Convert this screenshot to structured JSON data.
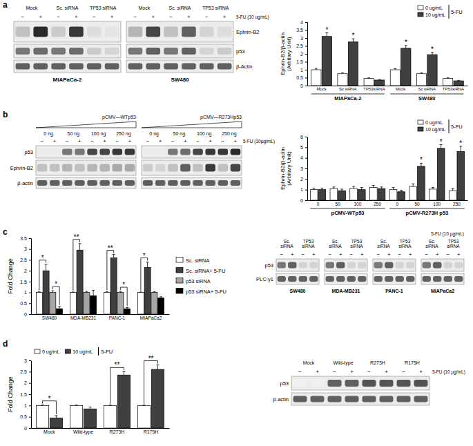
{
  "panel_labels": [
    "a",
    "b",
    "c",
    "d"
  ],
  "chart_data": [
    {
      "type": "bar",
      "y_label": [
        "Ephrin-B2/β-actin",
        "(Arbitary Unit)"
      ],
      "categories": [
        "Mock",
        "Sc siRNA",
        "TP53siRNA",
        "Mock",
        "Sc siRNA",
        "TP53siRNA"
      ],
      "groups": [
        {
          "name": "MIAPaCa-2",
          "size": 3
        },
        {
          "name": "SW480",
          "size": 3
        }
      ],
      "series": [
        {
          "name": "0 ug/mL",
          "color": "#ffffff",
          "values": [
            1.0,
            0.75,
            0.45,
            1.0,
            0.75,
            0.45
          ],
          "errors": [
            0.08,
            0.05,
            0.04,
            0.07,
            0.05,
            0.04
          ]
        },
        {
          "name": "10 ug/mL",
          "color": "#404040",
          "values": [
            3.1,
            2.75,
            0.35,
            2.35,
            1.95,
            0.3
          ],
          "errors": [
            0.22,
            0.2,
            0.03,
            0.18,
            0.15,
            0.03
          ]
        }
      ],
      "legend_title": "5-FU",
      "legend": "top right",
      "ylim": [
        0,
        4
      ],
      "yticks": [
        0,
        0.5,
        1,
        1.5,
        2,
        2.5,
        3,
        3.5,
        4
      ],
      "annotations": [
        {
          "text": "*",
          "series": 1,
          "category": 0
        },
        {
          "text": "*",
          "series": 1,
          "category": 1
        },
        {
          "text": "*",
          "series": 1,
          "category": 3
        },
        {
          "text": "*",
          "series": 1,
          "category": 4
        }
      ]
    },
    {
      "type": "bar",
      "y_label": [
        "Ephrin-B2/β-actin",
        "(Arbitary Unit)"
      ],
      "categories": [
        "0",
        "50",
        "100",
        "250",
        "0",
        "50",
        "100",
        "250"
      ],
      "groups": [
        {
          "name": "pCMV-WTp53",
          "size": 4
        },
        {
          "name": "pCMV-R273H p53",
          "size": 4
        }
      ],
      "series": [
        {
          "name": "0 ug/mL",
          "color": "#ffffff",
          "values": [
            1.0,
            1.1,
            1.1,
            1.2,
            1.0,
            1.3,
            1.05,
            0.9
          ],
          "errors": [
            0.15,
            0.15,
            0.2,
            0.2,
            0.2,
            0.25,
            0.15,
            0.2
          ]
        },
        {
          "name": "10 ug/mL",
          "color": "#404040",
          "values": [
            1.0,
            0.9,
            1.0,
            1.1,
            0.8,
            3.2,
            4.9,
            4.6
          ],
          "errors": [
            0.15,
            0.15,
            0.2,
            0.15,
            0.15,
            0.3,
            0.35,
            0.5
          ]
        }
      ],
      "legend_title": "5-FU",
      "legend": "top right",
      "ylim": [
        0,
        6
      ],
      "yticks": [
        0,
        1,
        2,
        3,
        4,
        5,
        6
      ],
      "annotations": [
        {
          "text": "*",
          "series": 1,
          "category": 5
        },
        {
          "text": "*",
          "series": 1,
          "category": 6
        },
        {
          "text": "*",
          "series": 1,
          "category": 7
        }
      ]
    },
    {
      "type": "bar",
      "y_label": "Fold Change",
      "categories": [
        "SW480",
        "MDA-MB231",
        "PANC-1",
        "MIAPaCa2"
      ],
      "series": [
        {
          "name": "Sc. siRNA",
          "color": "#ffffff",
          "values": [
            1,
            1,
            1,
            1
          ],
          "errors": [
            0.03,
            0.02,
            0.03,
            0.02
          ]
        },
        {
          "name": "Sc. siRNA+ 5-FU",
          "color": "#404040",
          "values": [
            2.0,
            2.95,
            2.6,
            2.15
          ],
          "errors": [
            0.3,
            0.3,
            0.15,
            0.25
          ]
        },
        {
          "name": "p53 siRNA",
          "color": "#a6a6a6",
          "values": [
            1,
            1,
            1,
            1
          ],
          "errors": [
            0.08,
            0.05,
            0.05,
            0.03
          ]
        },
        {
          "name": "p53 siRNA+ 5-FU",
          "color": "#000000",
          "values": [
            0.25,
            0.85,
            0.25,
            0.75
          ],
          "errors": [
            0.1,
            0.25,
            0.05,
            0.05
          ]
        }
      ],
      "legend": "right",
      "ylim": [
        0,
        3.5
      ],
      "yticks": [
        0,
        0.5,
        1,
        1.5,
        2,
        2.5,
        3,
        3.5
      ],
      "brackets": [
        {
          "text": "*",
          "category": 0,
          "from": 0,
          "to": 1
        },
        {
          "text": "*",
          "category": 0,
          "from": 2,
          "to": 3
        },
        {
          "text": "**",
          "category": 1,
          "from": 0,
          "to": 1
        },
        {
          "text": "**",
          "category": 2,
          "from": 0,
          "to": 1
        },
        {
          "text": "*",
          "category": 2,
          "from": 2,
          "to": 3
        },
        {
          "text": "*",
          "category": 3,
          "from": 0,
          "to": 1
        }
      ]
    },
    {
      "type": "bar",
      "y_label": "Fold Change",
      "categories": [
        "Mock",
        "Wild-type",
        "R273H",
        "R175H"
      ],
      "series": [
        {
          "name": "0 ug/mL",
          "color": "#ffffff",
          "values": [
            1,
            1,
            1,
            1
          ],
          "errors": [
            0.02,
            0.02,
            0.02,
            0.02
          ]
        },
        {
          "name": "10 ug/mL",
          "color": "#404040",
          "values": [
            0.45,
            0.85,
            2.35,
            2.6
          ],
          "errors": [
            0.1,
            0.08,
            0.15,
            0.2
          ]
        }
      ],
      "legend_title": "5-FU",
      "legend": "top left",
      "ylim": [
        0,
        3
      ],
      "yticks": [
        0,
        0.5,
        1,
        1.5,
        2,
        2.5,
        3
      ],
      "brackets": [
        {
          "text": "*",
          "category": 0,
          "from": 0,
          "to": 1
        },
        {
          "text": "**",
          "category": 2,
          "from": 0,
          "to": 1
        },
        {
          "text": "**",
          "category": 3,
          "from": 0,
          "to": 1
        }
      ]
    }
  ],
  "blots": [
    {
      "treatment_label": "5-FU (10 ug/mL)",
      "row_names": [
        "Ephrin-B2",
        "p53",
        "β-Actin"
      ],
      "panels": [
        {
          "caption": "MIAPaCa-2",
          "lane_groups": [
            "Mock",
            "Sc. siRNA",
            "TP53 siRNA"
          ],
          "lane_labels": [
            "−",
            "+",
            "−",
            "+",
            "−",
            "+"
          ],
          "intensity": [
            [
              0.3,
              0.9,
              0.25,
              0.85,
              0.15,
              0.1
            ],
            [
              0.6,
              0.65,
              0.6,
              0.65,
              0.25,
              0.2
            ],
            [
              0.7,
              0.7,
              0.7,
              0.7,
              0.7,
              0.7
            ]
          ]
        },
        {
          "caption": "SW480",
          "lane_groups": [
            "Mock",
            "Sc. siRNA",
            "TP53 siRNA"
          ],
          "lane_labels": [
            "−",
            "+",
            "−",
            "+",
            "−",
            "+"
          ],
          "intensity": [
            [
              0.35,
              0.8,
              0.3,
              0.7,
              0.2,
              0.15
            ],
            [
              0.6,
              0.7,
              0.6,
              0.7,
              0.2,
              0.25
            ],
            [
              0.7,
              0.7,
              0.7,
              0.7,
              0.7,
              0.7
            ]
          ]
        }
      ]
    },
    {
      "treatment_label": "5-FU (10µg/mL)",
      "row_names": [
        "p53",
        "Ephrin-B2",
        "β-actin"
      ],
      "panels": [
        {
          "title": "pCMV—WTp53",
          "lane_groups": [
            "0 ng",
            "50 ng",
            "100 ng",
            "250 ng"
          ],
          "lane_labels": [
            "−",
            "+",
            "−",
            "+",
            "−",
            "+",
            "−",
            "+"
          ],
          "intensity": [
            [
              0.05,
              0.05,
              0.6,
              0.6,
              0.8,
              0.8,
              0.85,
              0.85
            ],
            [
              0.3,
              0.3,
              0.35,
              0.3,
              0.35,
              0.35,
              0.4,
              0.4
            ],
            [
              0.7,
              0.7,
              0.7,
              0.7,
              0.7,
              0.7,
              0.7,
              0.7
            ]
          ]
        },
        {
          "title": "pCMV—R273Hp53",
          "lane_groups": [
            "0 ng",
            "50 ng",
            "100 ng",
            "250 ng"
          ],
          "lane_labels": [
            "−",
            "+",
            "−",
            "+",
            "−",
            "+",
            "−",
            "+"
          ],
          "intensity": [
            [
              0.05,
              0.05,
              0.6,
              0.65,
              0.8,
              0.85,
              0.85,
              0.9
            ],
            [
              0.25,
              0.2,
              0.3,
              0.7,
              0.3,
              0.85,
              0.3,
              0.8
            ],
            [
              0.7,
              0.7,
              0.7,
              0.7,
              0.7,
              0.7,
              0.7,
              0.7
            ]
          ]
        }
      ]
    },
    {
      "treatment_label": "5-FU (10 µg/mL)",
      "row_names": [
        "p53",
        "PLC-γ1"
      ],
      "panels": [
        {
          "caption": "SW480",
          "lane_groups": [
            "Sc. siRNA",
            "TP53 siRNA"
          ],
          "lane_labels": [
            "−",
            "+",
            "−",
            "+"
          ],
          "intensity": [
            [
              0.6,
              0.7,
              0.2,
              0.2
            ],
            [
              0.7,
              0.7,
              0.7,
              0.7
            ]
          ]
        },
        {
          "caption": "MDA-MB231",
          "lane_groups": [
            "Sc. siRNA",
            "TP53 siRNA"
          ],
          "lane_labels": [
            "−",
            "+",
            "−",
            "+"
          ],
          "intensity": [
            [
              0.6,
              0.7,
              0.2,
              0.2
            ],
            [
              0.7,
              0.7,
              0.7,
              0.7
            ]
          ]
        },
        {
          "caption": "PANC-1",
          "lane_groups": [
            "Sc. siRNA",
            "TP53 siRNA"
          ],
          "lane_labels": [
            "−",
            "+",
            "−",
            "+"
          ],
          "intensity": [
            [
              0.6,
              0.7,
              0.2,
              0.2
            ],
            [
              0.7,
              0.7,
              0.7,
              0.7
            ]
          ]
        },
        {
          "caption": "MIAPaCa2",
          "lane_groups": [
            "Sc. siRNA",
            "TP53 siRNA"
          ],
          "lane_labels": [
            "−",
            "+",
            "−",
            "+"
          ],
          "intensity": [
            [
              0.6,
              0.7,
              0.2,
              0.2
            ],
            [
              0.7,
              0.7,
              0.7,
              0.7
            ]
          ]
        }
      ]
    },
    {
      "treatment_label": "5-FU (10 µg/mL)",
      "row_names": [
        "p53",
        "β-actin"
      ],
      "panels": [
        {
          "lane_groups": [
            "Mock",
            "Wild-type",
            "R273H",
            "R175H"
          ],
          "lane_labels": [
            "−",
            "+",
            "−",
            "+",
            "−",
            "+",
            "−",
            "+"
          ],
          "intensity": [
            [
              0.02,
              0.02,
              0.7,
              0.7,
              0.75,
              0.75,
              0.75,
              0.75
            ],
            [
              0.7,
              0.7,
              0.7,
              0.7,
              0.7,
              0.7,
              0.7,
              0.7
            ]
          ]
        }
      ]
    }
  ]
}
